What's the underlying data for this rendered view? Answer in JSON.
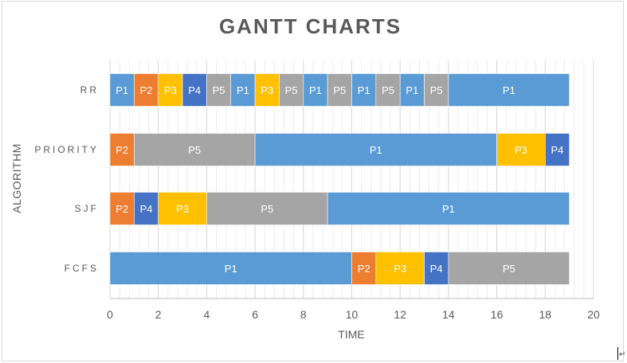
{
  "colors": {
    "P1": "#5b9bd5",
    "P2": "#ed7d31",
    "P3": "#ffc000",
    "P4": "#4472c4",
    "P5": "#a5a5a5"
  },
  "chart_data": {
    "type": "gantt",
    "title": "GANTT CHARTS",
    "xlabel": "TIME",
    "ylabel": "ALGORITHM",
    "xlim": [
      0,
      20
    ],
    "xticks": [
      0,
      2,
      4,
      6,
      8,
      10,
      12,
      14,
      16,
      18,
      20
    ],
    "minor_gridlines": true,
    "categories": [
      "RR",
      "PRIORITY",
      "SJF",
      "FCFS"
    ],
    "rows": [
      {
        "name": "RR",
        "segments": [
          {
            "label": "P1",
            "start": 0,
            "end": 1
          },
          {
            "label": "P2",
            "start": 1,
            "end": 2
          },
          {
            "label": "P3",
            "start": 2,
            "end": 3
          },
          {
            "label": "P4",
            "start": 3,
            "end": 4
          },
          {
            "label": "P5",
            "start": 4,
            "end": 5
          },
          {
            "label": "P1",
            "start": 5,
            "end": 6
          },
          {
            "label": "P3",
            "start": 6,
            "end": 7
          },
          {
            "label": "P5",
            "start": 7,
            "end": 8
          },
          {
            "label": "P1",
            "start": 8,
            "end": 9
          },
          {
            "label": "P5",
            "start": 9,
            "end": 10
          },
          {
            "label": "P1",
            "start": 10,
            "end": 11
          },
          {
            "label": "P5",
            "start": 11,
            "end": 12
          },
          {
            "label": "P1",
            "start": 12,
            "end": 13
          },
          {
            "label": "P5",
            "start": 13,
            "end": 14
          },
          {
            "label": "P1",
            "start": 14,
            "end": 19
          }
        ]
      },
      {
        "name": "PRIORITY",
        "segments": [
          {
            "label": "P2",
            "start": 0,
            "end": 1
          },
          {
            "label": "P5",
            "start": 1,
            "end": 6
          },
          {
            "label": "P1",
            "start": 6,
            "end": 16
          },
          {
            "label": "P3",
            "start": 16,
            "end": 18
          },
          {
            "label": "P4",
            "start": 18,
            "end": 19
          }
        ]
      },
      {
        "name": "SJF",
        "segments": [
          {
            "label": "P2",
            "start": 0,
            "end": 1
          },
          {
            "label": "P4",
            "start": 1,
            "end": 2
          },
          {
            "label": "P3",
            "start": 2,
            "end": 4
          },
          {
            "label": "P5",
            "start": 4,
            "end": 9
          },
          {
            "label": "P1",
            "start": 9,
            "end": 19
          }
        ]
      },
      {
        "name": "FCFS",
        "segments": [
          {
            "label": "P1",
            "start": 0,
            "end": 10
          },
          {
            "label": "P2",
            "start": 10,
            "end": 11
          },
          {
            "label": "P3",
            "start": 11,
            "end": 13
          },
          {
            "label": "P4",
            "start": 13,
            "end": 14
          },
          {
            "label": "P5",
            "start": 14,
            "end": 19
          }
        ]
      }
    ]
  }
}
